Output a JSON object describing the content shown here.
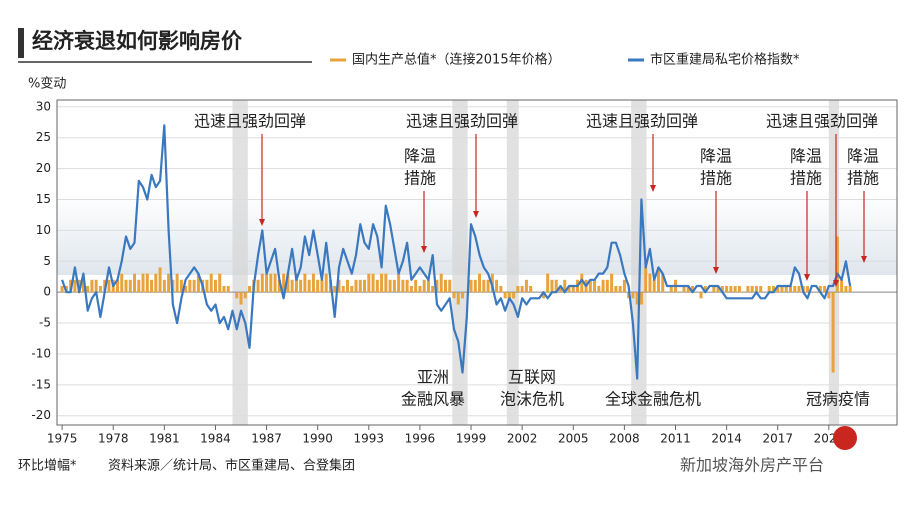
{
  "chart_data": {
    "type": "bar_line",
    "title": "经济衰退如何影响房价",
    "y_label": "%变动",
    "footnote": "环比增幅*",
    "source": "资料来源／统计局、市区重建局、合登集团",
    "watermark": "新加坡海外房产平台",
    "xlim": [
      1974.7,
      2024
    ],
    "ylim": [
      -21.5,
      31.1
    ],
    "xticks": [
      1975,
      1978,
      1981,
      1984,
      1987,
      1990,
      1993,
      1996,
      1999,
      2002,
      2005,
      2008,
      2011,
      2014,
      2017,
      2020
    ],
    "yticks": [
      -20,
      -15,
      -10,
      -5,
      0,
      5,
      10,
      15,
      20,
      25,
      30
    ],
    "grid": true,
    "recessions": [
      [
        1985.0,
        1985.9
      ],
      [
        1997.9,
        1998.8
      ],
      [
        2001.1,
        2001.8
      ],
      [
        2008.4,
        2009.3
      ],
      [
        2020.0,
        2020.6
      ]
    ],
    "x": [
      1975,
      1975.25,
      1975.5,
      1975.75,
      1976,
      1976.25,
      1976.5,
      1976.75,
      1977,
      1977.25,
      1977.5,
      1977.75,
      1978,
      1978.25,
      1978.5,
      1978.75,
      1979,
      1979.25,
      1979.5,
      1979.75,
      1980,
      1980.25,
      1980.5,
      1980.75,
      1981,
      1981.25,
      1981.5,
      1981.75,
      1982,
      1982.25,
      1982.5,
      1982.75,
      1983,
      1983.25,
      1983.5,
      1983.75,
      1984,
      1984.25,
      1984.5,
      1984.75,
      1985,
      1985.25,
      1985.5,
      1985.75,
      1986,
      1986.25,
      1986.5,
      1986.75,
      1987,
      1987.25,
      1987.5,
      1987.75,
      1988,
      1988.25,
      1988.5,
      1988.75,
      1989,
      1989.25,
      1989.5,
      1989.75,
      1990,
      1990.25,
      1990.5,
      1990.75,
      1991,
      1991.25,
      1991.5,
      1991.75,
      1992,
      1992.25,
      1992.5,
      1992.75,
      1993,
      1993.25,
      1993.5,
      1993.75,
      1994,
      1994.25,
      1994.5,
      1994.75,
      1995,
      1995.25,
      1995.5,
      1995.75,
      1996,
      1996.25,
      1996.5,
      1996.75,
      1997,
      1997.25,
      1997.5,
      1997.75,
      1998,
      1998.25,
      1998.5,
      1998.75,
      1999,
      1999.25,
      1999.5,
      1999.75,
      2000,
      2000.25,
      2000.5,
      2000.75,
      2001,
      2001.25,
      2001.5,
      2001.75,
      2002,
      2002.25,
      2002.5,
      2002.75,
      2003,
      2003.25,
      2003.5,
      2003.75,
      2004,
      2004.25,
      2004.5,
      2004.75,
      2005,
      2005.25,
      2005.5,
      2005.75,
      2006,
      2006.25,
      2006.5,
      2006.75,
      2007,
      2007.25,
      2007.5,
      2007.75,
      2008,
      2008.25,
      2008.5,
      2008.75,
      2009,
      2009.25,
      2009.5,
      2009.75,
      2010,
      2010.25,
      2010.5,
      2010.75,
      2011,
      2011.25,
      2011.5,
      2011.75,
      2012,
      2012.25,
      2012.5,
      2012.75,
      2013,
      2013.25,
      2013.5,
      2013.75,
      2014,
      2014.25,
      2014.5,
      2014.75,
      2015,
      2015.25,
      2015.5,
      2015.75,
      2016,
      2016.25,
      2016.5,
      2016.75,
      2017,
      2017.25,
      2017.5,
      2017.75,
      2018,
      2018.25,
      2018.5,
      2018.75,
      2019,
      2019.25,
      2019.5,
      2019.75,
      2020,
      2020.25,
      2020.5,
      2020.75,
      2021,
      2021.25
    ],
    "series": [
      {
        "name": "国内生产总值*（连接2015年价格）",
        "color": "#e8a33d",
        "kind": "bar",
        "values": [
          1,
          1,
          2,
          2,
          2,
          2,
          1,
          2,
          2,
          1,
          2,
          2,
          2,
          2,
          3,
          2,
          2,
          3,
          2,
          3,
          3,
          2,
          3,
          4,
          2,
          3,
          2,
          3,
          2,
          1,
          2,
          2,
          3,
          2,
          2,
          3,
          2,
          3,
          1,
          1,
          0,
          -1,
          -2,
          -1,
          1,
          2,
          2,
          3,
          3,
          3,
          3,
          2,
          3,
          3,
          2,
          3,
          2,
          3,
          2,
          3,
          2,
          2,
          3,
          2,
          1,
          2,
          1,
          2,
          1,
          2,
          2,
          2,
          3,
          3,
          2,
          3,
          3,
          2,
          2,
          3,
          2,
          2,
          1,
          2,
          1,
          2,
          2,
          1,
          2,
          3,
          2,
          2,
          -1,
          -2,
          -1,
          0,
          2,
          2,
          3,
          2,
          2,
          3,
          2,
          1,
          -1,
          -1,
          -1,
          1,
          1,
          2,
          1,
          0,
          0,
          -1,
          3,
          2,
          2,
          1,
          2,
          1,
          1,
          2,
          3,
          2,
          2,
          2,
          1,
          2,
          2,
          3,
          1,
          1,
          2,
          -1,
          -1,
          -2,
          -2,
          4,
          3,
          2,
          4,
          3,
          0,
          1,
          2,
          0,
          1,
          1,
          1,
          0,
          -1,
          1,
          0,
          1,
          1,
          1,
          1,
          1,
          1,
          1,
          0,
          1,
          1,
          1,
          1,
          0,
          1,
          1,
          1,
          1,
          1,
          1,
          1,
          1,
          1,
          1,
          0,
          0,
          1,
          1,
          -1,
          -13,
          9,
          2,
          1,
          1
        ]
      },
      {
        "name": "市区重建局私宅价格指数*",
        "color": "#3a78c0",
        "kind": "line",
        "values": [
          2,
          0,
          0,
          4,
          0,
          3,
          -3,
          -1,
          0,
          -4,
          0,
          4,
          1,
          2,
          5,
          9,
          7,
          8,
          18,
          17,
          15,
          19,
          17,
          18,
          27,
          10,
          -2,
          -5,
          -1,
          2,
          3,
          4,
          3,
          1,
          -2,
          -3,
          -2,
          -5,
          -4,
          -6,
          -3,
          -6,
          -3,
          -5,
          -9,
          1,
          6,
          10,
          3,
          5,
          7,
          2,
          -1,
          3,
          7,
          2,
          4,
          9,
          6,
          10,
          6,
          2,
          8,
          2,
          -4,
          4,
          7,
          5,
          3,
          6,
          11,
          8,
          7,
          11,
          9,
          4,
          14,
          11,
          7,
          3,
          5,
          8,
          2,
          3,
          4,
          3,
          2,
          6,
          -2,
          -3,
          -2,
          -1,
          -6,
          -8,
          -13,
          -4,
          11,
          9,
          6,
          4,
          3,
          1,
          -2,
          -1,
          -3,
          -1,
          -2,
          -4,
          -1,
          -2,
          -1,
          -1,
          -1,
          0,
          -1,
          0,
          0,
          1,
          0,
          1,
          1,
          1,
          2,
          1,
          2,
          2,
          3,
          3,
          4,
          8,
          8,
          6,
          3,
          1,
          -5,
          -14,
          15,
          4,
          7,
          2,
          4,
          3,
          1,
          1,
          1,
          1,
          1,
          1,
          0,
          1,
          1,
          0,
          1,
          1,
          1,
          0,
          -1,
          -1,
          -1,
          -1,
          -1,
          -1,
          -1,
          0,
          -1,
          -1,
          0,
          0,
          1,
          1,
          1,
          1,
          4,
          3,
          0,
          -1,
          1,
          1,
          0,
          -1,
          1,
          1,
          3,
          2,
          5,
          1
        ]
      }
    ],
    "annotations": [
      {
        "lines": [
          "迅速且强劲回弹"
        ]
      },
      {
        "lines": [
          "迅速且强劲回弹"
        ]
      },
      {
        "lines": [
          "迅速且强劲回弹"
        ]
      },
      {
        "lines": [
          "迅速且强劲回弹"
        ]
      },
      {
        "lines": [
          "降温",
          "措施"
        ]
      },
      {
        "lines": [
          "降温",
          "措施"
        ]
      },
      {
        "lines": [
          "降温",
          "措施"
        ]
      },
      {
        "lines": [
          "降温",
          "措施"
        ]
      },
      {
        "lines": [
          "亚洲",
          "金融风暴"
        ]
      },
      {
        "lines": [
          "互联网",
          "泡沫危机"
        ]
      },
      {
        "lines": [
          "全球金融危机"
        ]
      },
      {
        "lines": [
          "冠病疫情"
        ]
      }
    ]
  }
}
